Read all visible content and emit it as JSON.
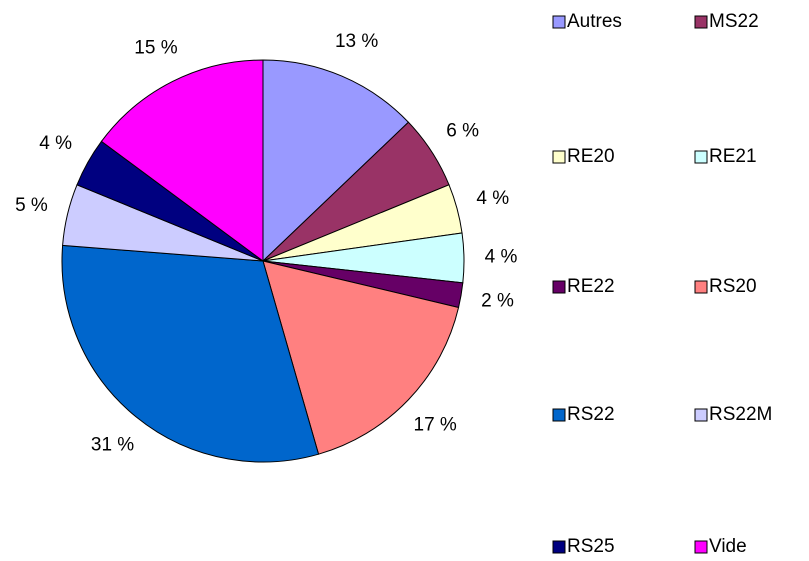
{
  "chart_data": {
    "type": "pie",
    "categories": [
      "Autres",
      "MS22",
      "RE20",
      "RE21",
      "RE22",
      "RS20",
      "RS22",
      "RS22M",
      "RS25",
      "Vide"
    ],
    "values": [
      13,
      6,
      4,
      4,
      2,
      17,
      31,
      5,
      4,
      15
    ],
    "value_labels": [
      "13 %",
      "6 %",
      "4 %",
      "4 %",
      "2 %",
      "17 %",
      "31 %",
      "5 %",
      "4 %",
      "15 %"
    ],
    "colors": [
      "#9999ff",
      "#993366",
      "#ffffcc",
      "#ccffff",
      "#660066",
      "#ff8080",
      "#0066cc",
      "#ccccff",
      "#000080",
      "#ff00ff"
    ],
    "legend": "right"
  }
}
